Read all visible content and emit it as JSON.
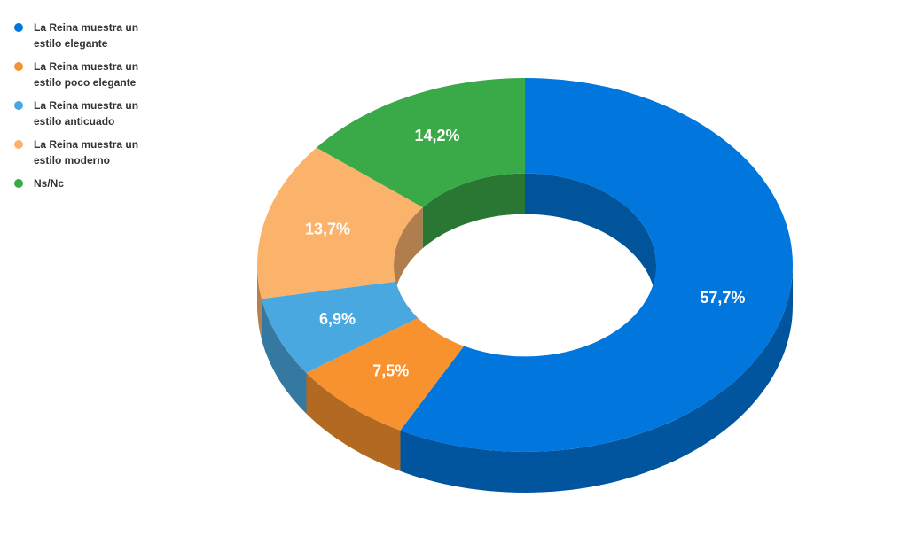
{
  "chart_data": {
    "type": "donut3d",
    "categories": [
      "La Reina muestra un estilo elegante",
      "La Reina muestra un estilo poco elegante",
      "La Reina muestra un estilo anticuado",
      "La Reina muestra un estilo moderno",
      "Ns/Nc"
    ],
    "values": [
      57.7,
      7.5,
      6.9,
      13.7,
      14.2
    ],
    "value_labels": [
      "57,7%",
      "7,5%",
      "6,9%",
      "13,7%",
      "14,2%"
    ],
    "colors": [
      "#0176dc",
      "#f7922e",
      "#4aa8e0",
      "#fbb36c",
      "#3aaa48"
    ],
    "legend": "left"
  }
}
